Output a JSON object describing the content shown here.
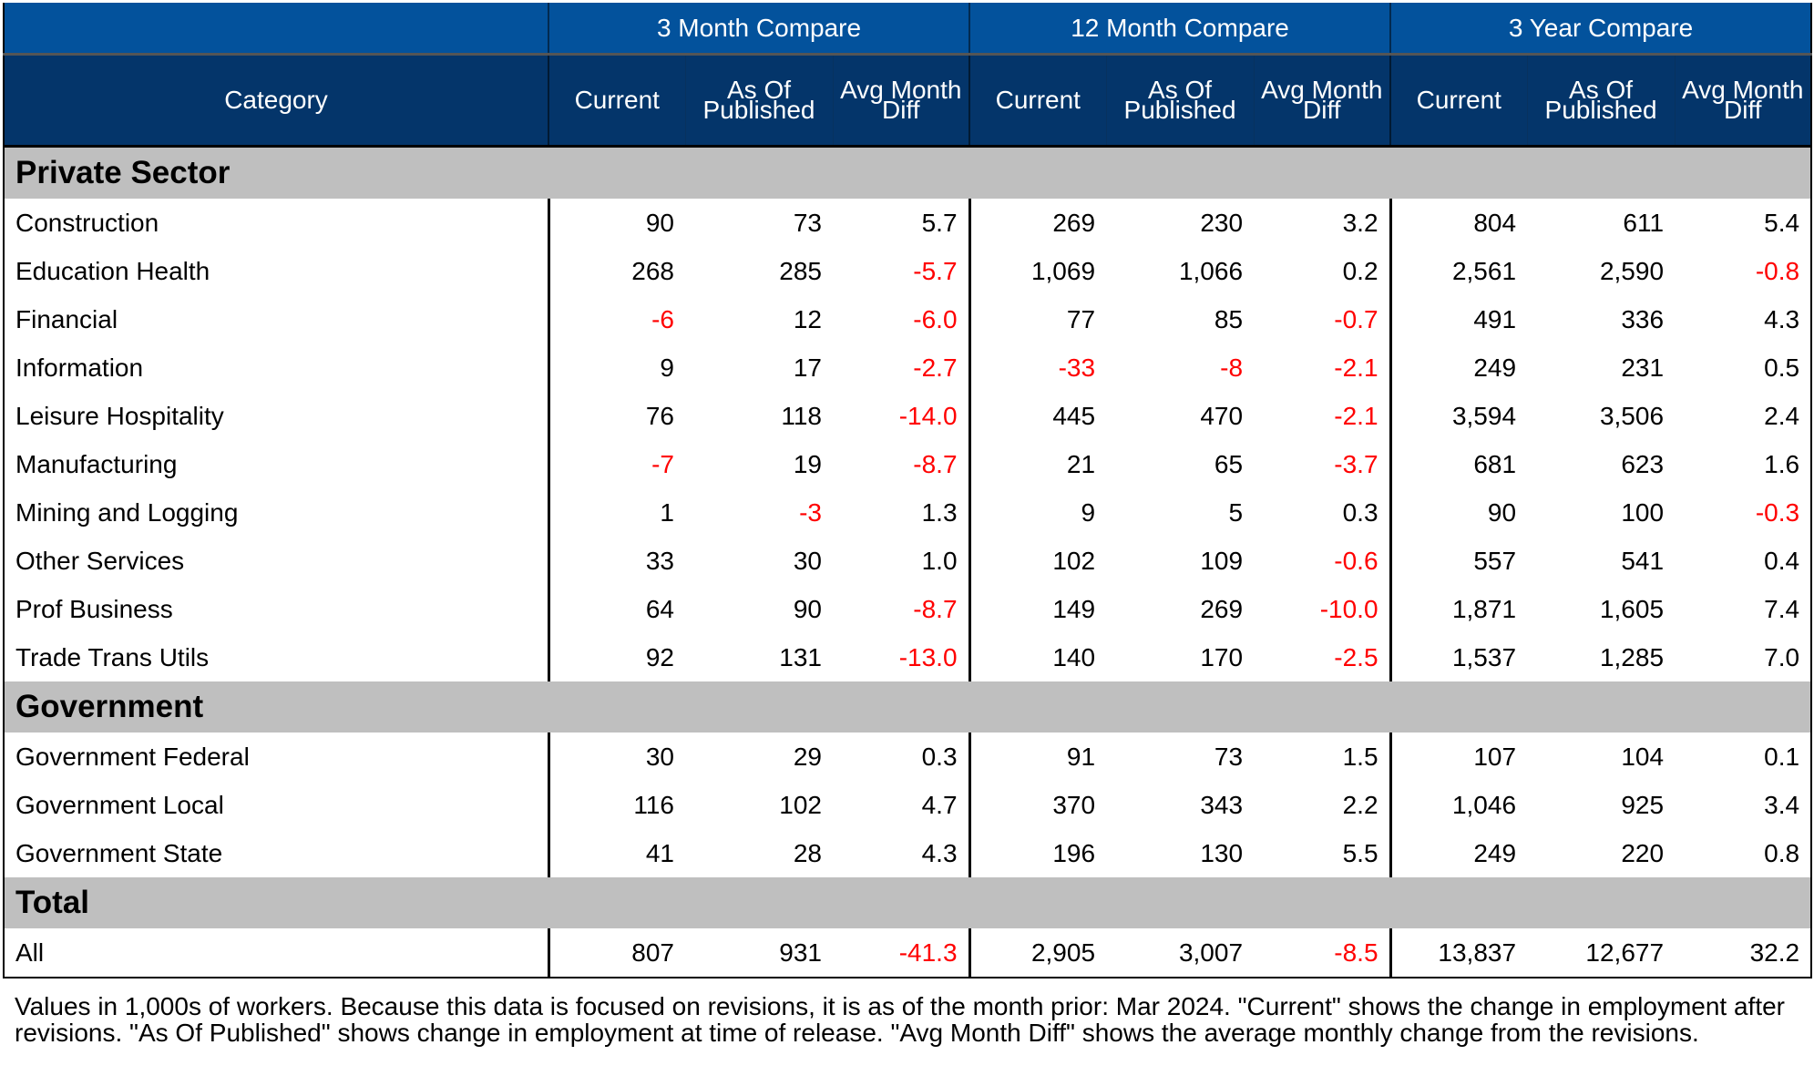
{
  "header": {
    "groups": [
      "3 Month Compare",
      "12 Month Compare",
      "3 Year Compare"
    ],
    "category_label": "Category",
    "columns": [
      "Current",
      "As Of Published",
      "Avg Month Diff"
    ]
  },
  "colors": {
    "top_header": "#03529c",
    "sub_header": "#04356a",
    "section": "#bfbfbf",
    "negative": "#ff0000"
  },
  "sections": [
    {
      "title": "Private Sector",
      "rows": [
        {
          "category": "Construction",
          "values": [
            "90",
            "73",
            "5.7",
            "269",
            "230",
            "3.2",
            "804",
            "611",
            "5.4"
          ]
        },
        {
          "category": "Education Health",
          "values": [
            "268",
            "285",
            "-5.7",
            "1,069",
            "1,066",
            "0.2",
            "2,561",
            "2,590",
            "-0.8"
          ]
        },
        {
          "category": "Financial",
          "values": [
            "-6",
            "12",
            "-6.0",
            "77",
            "85",
            "-0.7",
            "491",
            "336",
            "4.3"
          ]
        },
        {
          "category": "Information",
          "values": [
            "9",
            "17",
            "-2.7",
            "-33",
            "-8",
            "-2.1",
            "249",
            "231",
            "0.5"
          ]
        },
        {
          "category": "Leisure Hospitality",
          "values": [
            "76",
            "118",
            "-14.0",
            "445",
            "470",
            "-2.1",
            "3,594",
            "3,506",
            "2.4"
          ]
        },
        {
          "category": "Manufacturing",
          "values": [
            "-7",
            "19",
            "-8.7",
            "21",
            "65",
            "-3.7",
            "681",
            "623",
            "1.6"
          ]
        },
        {
          "category": "Mining and Logging",
          "values": [
            "1",
            "-3",
            "1.3",
            "9",
            "5",
            "0.3",
            "90",
            "100",
            "-0.3"
          ]
        },
        {
          "category": "Other Services",
          "values": [
            "33",
            "30",
            "1.0",
            "102",
            "109",
            "-0.6",
            "557",
            "541",
            "0.4"
          ]
        },
        {
          "category": "Prof Business",
          "values": [
            "64",
            "90",
            "-8.7",
            "149",
            "269",
            "-10.0",
            "1,871",
            "1,605",
            "7.4"
          ]
        },
        {
          "category": "Trade Trans Utils",
          "values": [
            "92",
            "131",
            "-13.0",
            "140",
            "170",
            "-2.5",
            "1,537",
            "1,285",
            "7.0"
          ]
        }
      ]
    },
    {
      "title": "Government",
      "rows": [
        {
          "category": "Government Federal",
          "values": [
            "30",
            "29",
            "0.3",
            "91",
            "73",
            "1.5",
            "107",
            "104",
            "0.1"
          ]
        },
        {
          "category": "Government Local",
          "values": [
            "116",
            "102",
            "4.7",
            "370",
            "343",
            "2.2",
            "1,046",
            "925",
            "3.4"
          ]
        },
        {
          "category": "Government State",
          "values": [
            "41",
            "28",
            "4.3",
            "196",
            "130",
            "5.5",
            "249",
            "220",
            "0.8"
          ]
        }
      ]
    },
    {
      "title": "Total",
      "rows": [
        {
          "category": "All",
          "values": [
            "807",
            "931",
            "-41.3",
            "2,905",
            "3,007",
            "-8.5",
            "13,837",
            "12,677",
            "32.2"
          ]
        }
      ]
    }
  ],
  "footnote": "Values in 1,000s of workers. Because this data is focused on revisions, it is as of the month prior: Mar 2024. \"Current\" shows the change in employment after revisions. \"As Of Published\" shows change in employment at time of release. \"Avg Month Diff\" shows the average monthly change from the revisions."
}
